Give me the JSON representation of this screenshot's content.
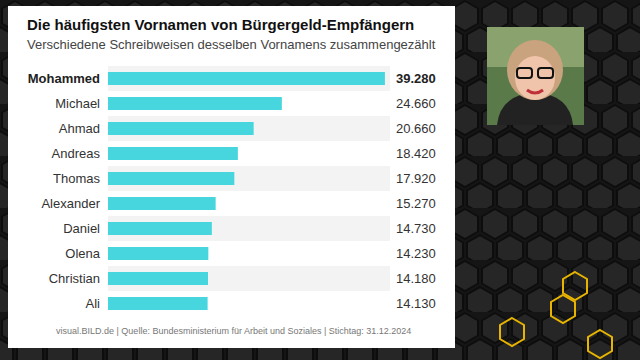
{
  "chart_data": {
    "type": "bar",
    "title": "Die häufigsten Vornamen von Bürgergeld-Empfängern",
    "subtitle": "Verschiedene Schreibweisen desselben Vornamens zusammengezählt",
    "source": "visual.BILD.de | Quelle: Bundesministerium für Arbeit und Soziales | Stichtag: 31.12.2024",
    "categories": [
      "Mohammed",
      "Michael",
      "Ahmad",
      "Andreas",
      "Thomas",
      "Alexander",
      "Daniel",
      "Olena",
      "Christian",
      "Ali"
    ],
    "values": [
      39280,
      24660,
      20660,
      18420,
      17920,
      15270,
      14730,
      14230,
      14180,
      14130
    ],
    "value_labels": [
      "39.280",
      "24.660",
      "20.660",
      "18.420",
      "17.920",
      "15.270",
      "14.730",
      "14.230",
      "14.180",
      "14.130"
    ],
    "color": "#48d6de",
    "orientation": "horizontal",
    "xlim": [
      0,
      40000
    ],
    "data_labels": true,
    "tick_labels": "y",
    "grid": false
  }
}
